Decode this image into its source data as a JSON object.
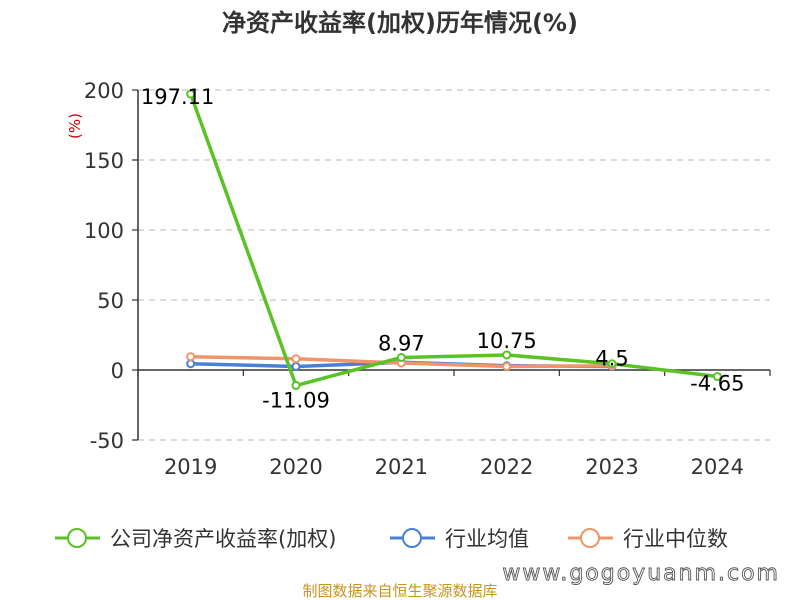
{
  "chart_data": {
    "type": "line",
    "title": "净资产收益率(加权)历年情况(%)",
    "ylabel": "(%)",
    "categories": [
      "2019",
      "2020",
      "2021",
      "2022",
      "2023",
      "2024"
    ],
    "ylim": [
      -50,
      200
    ],
    "yticks": [
      -50,
      0,
      50,
      100,
      150,
      200
    ],
    "grid": true,
    "legend_position": "bottom",
    "series": [
      {
        "name": "公司净资产收益率(加权)",
        "color": "#5bc225",
        "values": [
          197.11,
          -11.09,
          8.97,
          10.75,
          4.5,
          -4.65
        ],
        "labels": [
          "197.11",
          "-11.09",
          "8.97",
          "10.75",
          "4.5",
          "-4.65"
        ]
      },
      {
        "name": "行业均值",
        "color": "#4a7fd6",
        "values": [
          4.5,
          2.5,
          5.5,
          3.0,
          2.5,
          null
        ]
      },
      {
        "name": "行业中位数",
        "color": "#f0946a",
        "values": [
          9.5,
          8.0,
          5.0,
          2.5,
          3.0,
          null
        ]
      }
    ]
  },
  "footer": {
    "source": "制图数据来自恒生聚源数据库",
    "watermark": "www.gogoyuanm.com"
  }
}
